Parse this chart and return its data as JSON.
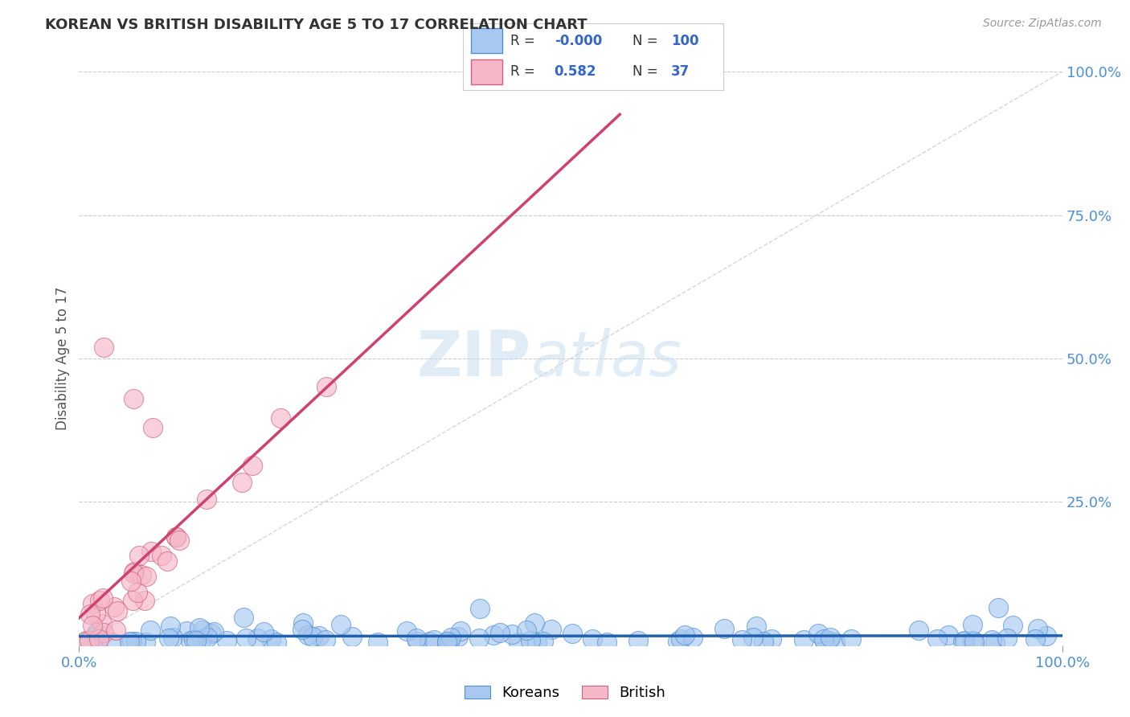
{
  "title": "KOREAN VS BRITISH DISABILITY AGE 5 TO 17 CORRELATION CHART",
  "source": "Source: ZipAtlas.com",
  "ylabel": "Disability Age 5 to 17",
  "xlim": [
    0.0,
    1.0
  ],
  "ylim": [
    0.0,
    1.0
  ],
  "ytick_positions": [
    0.25,
    0.5,
    0.75,
    1.0
  ],
  "ytick_labels": [
    "25.0%",
    "50.0%",
    "75.0%",
    "100.0%"
  ],
  "grid_color": "#cccccc",
  "background_color": "#ffffff",
  "korean_color": "#a8c8f0",
  "korean_edge_color": "#5090d0",
  "british_color": "#f5b8c8",
  "british_edge_color": "#d06080",
  "korean_R": "-0.000",
  "korean_N": "100",
  "british_R": "0.582",
  "british_N": "37",
  "legend_color_korean": "#a8c8f0",
  "legend_color_british": "#f5b8c8",
  "legend_border_korean": "#5090d0",
  "legend_border_british": "#d06080",
  "legend_text_color": "#3366cc",
  "title_color": "#333333",
  "axis_label_color": "#555555",
  "right_tick_color": "#4a90d9",
  "watermark_zip": "ZIP",
  "watermark_atlas": "atlas",
  "korean_trendline_color": "#2060b0",
  "british_trendline_color": "#d04070",
  "diag_color": "#cccccc"
}
